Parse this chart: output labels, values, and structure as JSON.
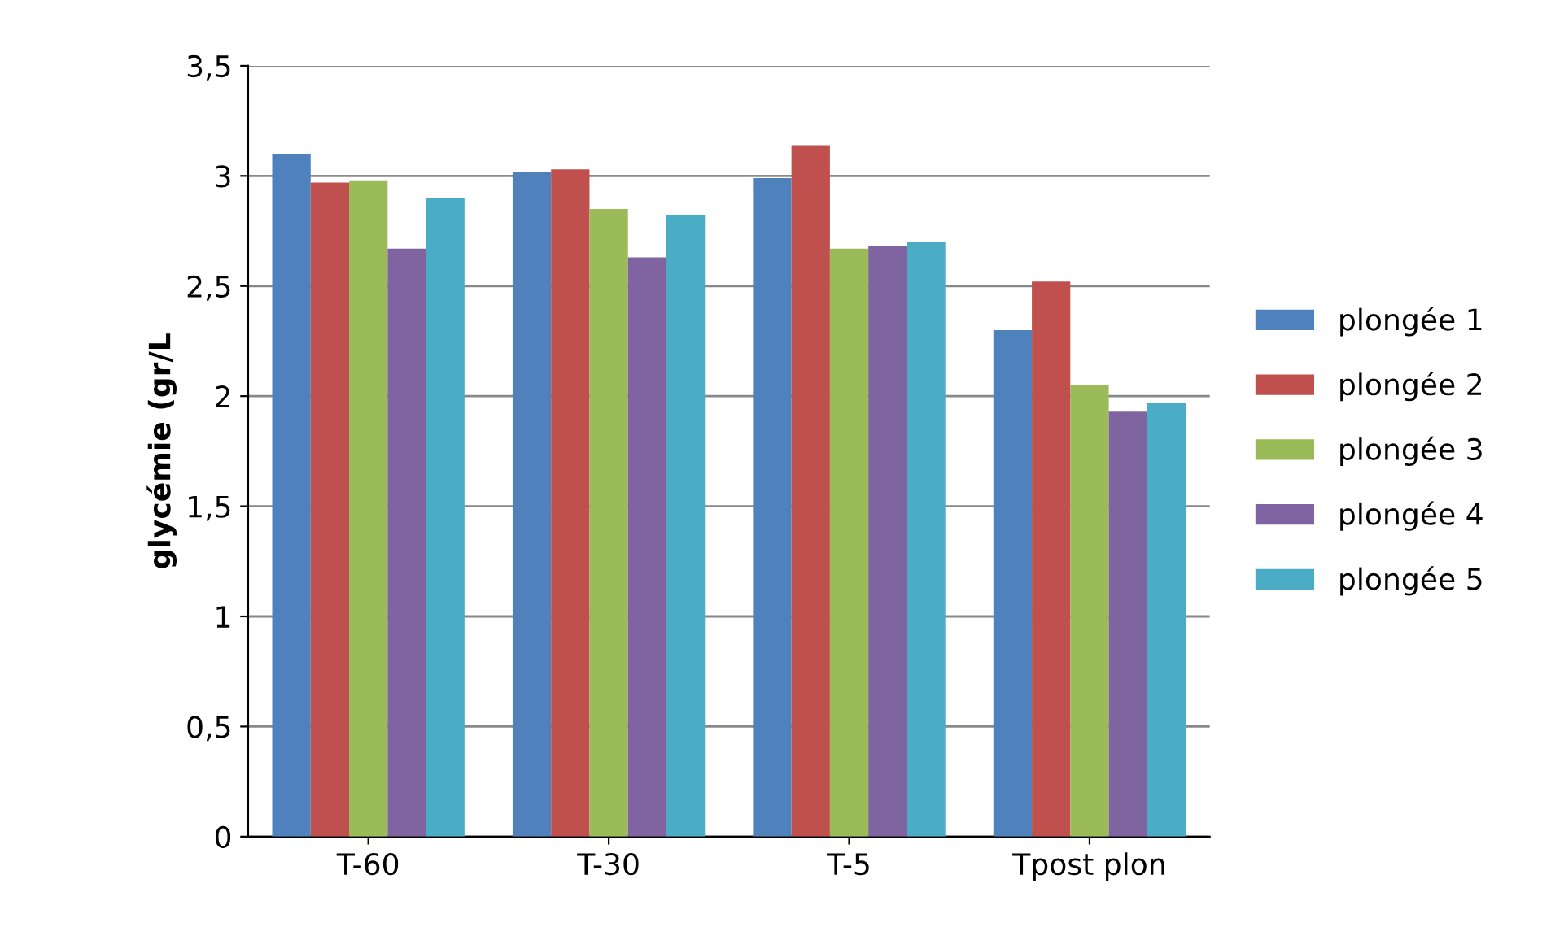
{
  "chart_data": {
    "type": "bar",
    "ylabel": "glycémie (gr/L",
    "categories": [
      "T-60",
      "T-30",
      "T-5",
      "Tpost plon"
    ],
    "series": [
      {
        "name": "plongée 1",
        "color": "#4f81bd",
        "values": [
          3.1,
          3.02,
          2.99,
          2.3
        ]
      },
      {
        "name": "plongée 2",
        "color": "#c0504d",
        "values": [
          2.97,
          3.03,
          3.14,
          2.52
        ]
      },
      {
        "name": "plongée 3",
        "color": "#9bbb59",
        "values": [
          2.98,
          2.85,
          2.67,
          2.05
        ]
      },
      {
        "name": "plongée 4",
        "color": "#8064a2",
        "values": [
          2.67,
          2.63,
          2.68,
          1.93
        ]
      },
      {
        "name": "plongée 5",
        "color": "#4bacc6",
        "values": [
          2.9,
          2.82,
          2.7,
          1.97
        ]
      }
    ],
    "ylim": [
      0,
      3.5
    ],
    "yticks": [
      0,
      {
        "value": 0.5,
        "label": "0,5"
      },
      1,
      {
        "value": 1.5,
        "label": "1,5"
      },
      2,
      {
        "value": 2.5,
        "label": "2,5"
      },
      3,
      {
        "value": 3.5,
        "label": "3,5"
      }
    ],
    "grid": "y",
    "legend": "right"
  }
}
